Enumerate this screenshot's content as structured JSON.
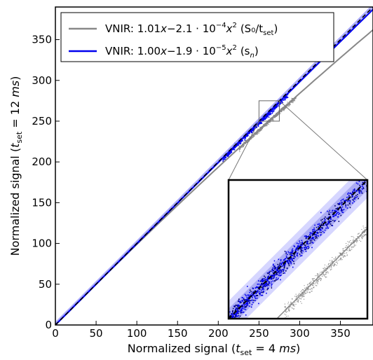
{
  "chart_data": {
    "type": "scatter",
    "title": "",
    "xlabel": "Normalized signal (t_set = 4 ms)",
    "ylabel": "Normalized signal (t_set = 12 ms)",
    "xlim": [
      0,
      390
    ],
    "ylim": [
      0,
      390
    ],
    "xticks": [
      0,
      50,
      100,
      150,
      200,
      250,
      300,
      350
    ],
    "yticks": [
      0,
      50,
      100,
      150,
      200,
      250,
      300,
      350
    ],
    "grid": false,
    "legend_position": "top-left",
    "series": [
      {
        "name": "VNIR: 1.01x−2.1 · 10⁻⁴x² (S₀/t_set)",
        "color": "#888888",
        "fit": {
          "a": 1.01,
          "b": -0.00021
        }
      },
      {
        "name": "VNIR: 1.00x−1.9 · 10⁻⁵x² (s_n)",
        "color": "#0000ee",
        "fit": {
          "a": 1.0,
          "b": -1.9e-05
        }
      }
    ],
    "reference_line": {
      "style": "dashed",
      "color": "#000000",
      "slope": 1
    },
    "inset": {
      "source_box": {
        "x": [
          250,
          275
        ],
        "y": [
          250,
          275
        ]
      },
      "xlim": [
        250,
        275
      ],
      "ylim": [
        250,
        275
      ]
    }
  },
  "legend": {
    "entry1": {
      "prefix": "VNIR: 1.01",
      "var": "x",
      "mid": "−2.1 · 10",
      "exp": "−4",
      "var2": "x",
      "exp2": "2",
      "paren": "(S₀/t",
      "sub": "set",
      "close": ")"
    },
    "entry2": {
      "prefix": "VNIR: 1.00",
      "var": "x",
      "mid": "−1.9 · 10",
      "exp": "−5",
      "var2": "x",
      "exp2": "2",
      "paren": "(s",
      "sub": "n",
      "close": ")"
    }
  },
  "axis_labels": {
    "x": {
      "pre": "Normalized signal (",
      "t": "t",
      "sub": "set",
      "post": " = 4 ",
      "unit": "ms",
      "close": ")"
    },
    "y": {
      "pre": "Normalized signal (",
      "t": "t",
      "sub": "set",
      "post": " = 12 ",
      "unit": "ms",
      "close": ")"
    }
  }
}
